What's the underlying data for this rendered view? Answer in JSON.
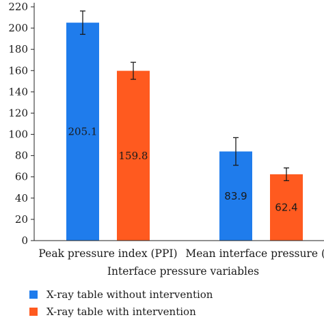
{
  "chart_data": {
    "type": "bar",
    "categories": [
      "Peak pressure index (PPI)",
      "Mean interface pressure (IP"
    ],
    "xlabel": "Interface pressure variables",
    "ylabel": "",
    "ylim": [
      0,
      220
    ],
    "yticks": [
      0,
      20,
      40,
      60,
      80,
      100,
      120,
      140,
      160,
      180,
      200,
      220
    ],
    "grid": false,
    "legend_position": "bottom-left",
    "series": [
      {
        "name": "X-ray table without intervention",
        "color": "#1f7cec",
        "values": [
          205.1,
          83.9
        ],
        "labels": [
          "205.1",
          "83.9"
        ],
        "error": [
          11,
          13
        ]
      },
      {
        "name": "X-ray table with intervention",
        "color": "#ff5a1f",
        "values": [
          159.8,
          62.4
        ],
        "labels": [
          "159.8",
          "62.4"
        ],
        "error": [
          8,
          6
        ]
      }
    ]
  }
}
